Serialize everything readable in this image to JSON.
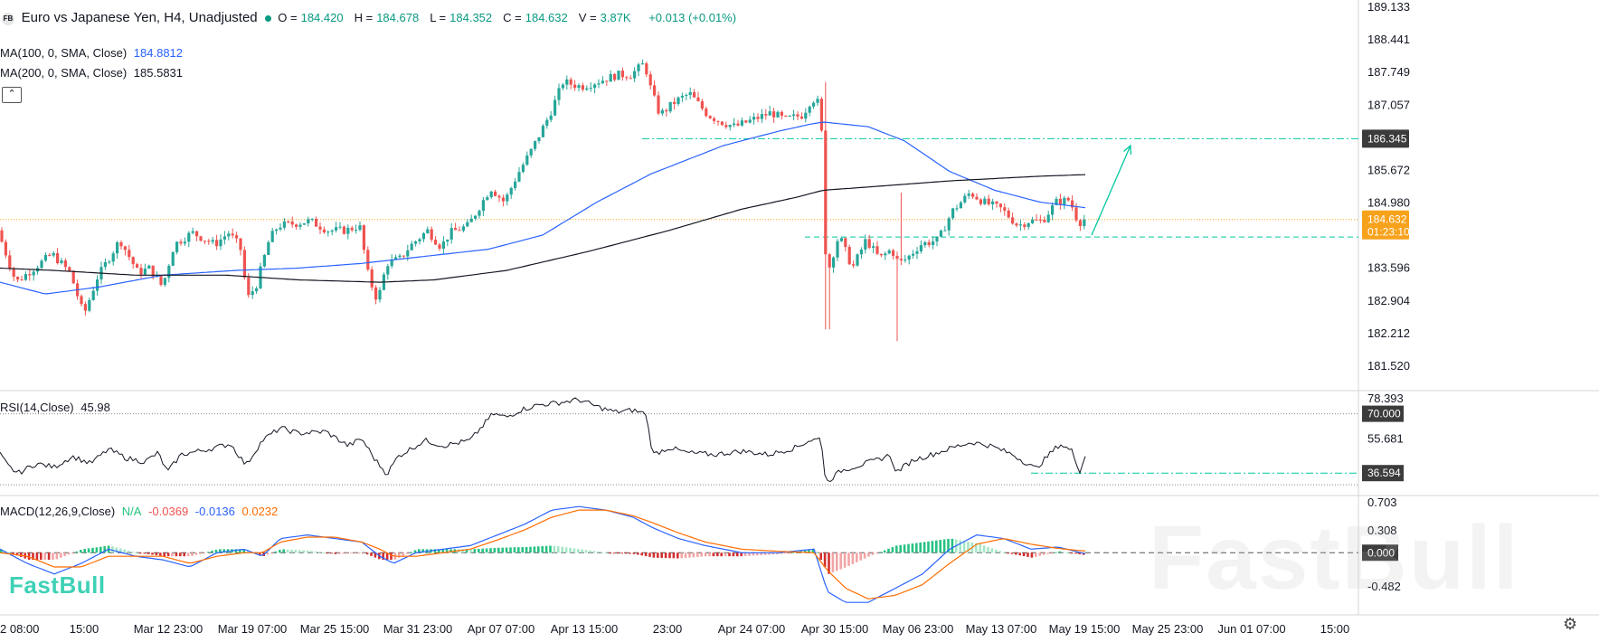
{
  "header": {
    "symbol_badge": "FB",
    "symbol": "Euro vs Japanese Yen, H4, Unadjusted",
    "ohlc": [
      {
        "label": "O",
        "value": "184.420"
      },
      {
        "label": "H",
        "value": "184.678"
      },
      {
        "label": "L",
        "value": "184.352"
      },
      {
        "label": "C",
        "value": "184.632"
      },
      {
        "label": "V",
        "value": "3.87K"
      }
    ],
    "change": "+0.013 (+0.01%)"
  },
  "indicators": {
    "ma100": {
      "label": "MA(100, 0, SMA, Close)",
      "value": "184.8812",
      "color": "#2962ff"
    },
    "ma200": {
      "label": "MA(200, 0, SMA, Close)",
      "value": "185.5831",
      "color": "#131722"
    },
    "rsi": {
      "label": "RSI(14,Close)",
      "value": "45.98"
    },
    "macd": {
      "label": "MACD(12,26,9,Close)",
      "na": "N/A",
      "hist": "-0.0369",
      "macd": "-0.0136",
      "signal": "0.0232"
    }
  },
  "brand": "FastBull",
  "watermark": "FastBull",
  "colors": {
    "up": "#26a69a",
    "down": "#ef5350",
    "ma100": "#2962ff",
    "ma200": "#131722",
    "macd_line": "#2962ff",
    "signal_line": "#ff6d00",
    "annotation": "#00c8a0",
    "price_tag": "#f7a21b",
    "level_tag": "#3c3c3c"
  },
  "chart_data": [
    {
      "type": "candlestick",
      "pane": "price",
      "x_ticks": [
        "2 08:00",
        "15:00",
        "Mar 12 23:00",
        "Mar 19 07:00",
        "Mar 25 15:00",
        "Mar 31 23:00",
        "Apr 07 07:00",
        "Apr 13 15:00",
        "23:00",
        "Apr 24 07:00",
        "Apr 30 15:00",
        "May 06 23:00",
        "May 13 07:00",
        "May 19 15:00",
        "May 25 23:00",
        "Jun 01 07:00",
        "15:00"
      ],
      "y_ticks": [
        189.133,
        188.441,
        187.749,
        187.057,
        186.345,
        185.672,
        184.98,
        184.632,
        183.596,
        182.904,
        182.212,
        181.52
      ],
      "ylim": [
        181.0,
        189.25
      ],
      "price_profile": [
        [
          0,
          184.4
        ],
        [
          20,
          183.3
        ],
        [
          40,
          183.6
        ],
        [
          60,
          183.9
        ],
        [
          80,
          183.5
        ],
        [
          95,
          182.6
        ],
        [
          110,
          183.4
        ],
        [
          135,
          184.2
        ],
        [
          155,
          183.5
        ],
        [
          168,
          183.6
        ],
        [
          182,
          183.2
        ],
        [
          195,
          184.1
        ],
        [
          215,
          184.35
        ],
        [
          240,
          184.1
        ],
        [
          255,
          184.35
        ],
        [
          268,
          184.05
        ],
        [
          276,
          182.95
        ],
        [
          286,
          183.25
        ],
        [
          300,
          184.2
        ],
        [
          310,
          184.5
        ],
        [
          330,
          184.55
        ],
        [
          345,
          184.6
        ],
        [
          365,
          184.4
        ],
        [
          385,
          184.4
        ],
        [
          400,
          184.5
        ],
        [
          410,
          183.4
        ],
        [
          420,
          182.9
        ],
        [
          430,
          183.7
        ],
        [
          445,
          183.8
        ],
        [
          455,
          184.05
        ],
        [
          475,
          184.4
        ],
        [
          490,
          184.05
        ],
        [
          500,
          184.35
        ],
        [
          520,
          184.5
        ],
        [
          545,
          185.3
        ],
        [
          560,
          185.0
        ],
        [
          575,
          185.6
        ],
        [
          590,
          186.1
        ],
        [
          610,
          186.85
        ],
        [
          625,
          187.55
        ],
        [
          645,
          187.45
        ],
        [
          670,
          187.6
        ],
        [
          685,
          187.7
        ],
        [
          700,
          187.7
        ],
        [
          715,
          187.95
        ],
        [
          722,
          187.4
        ],
        [
          732,
          186.85
        ],
        [
          750,
          187.15
        ],
        [
          765,
          187.3
        ],
        [
          785,
          186.85
        ],
        [
          800,
          186.7
        ],
        [
          815,
          186.6
        ],
        [
          835,
          186.75
        ],
        [
          855,
          186.9
        ],
        [
          870,
          186.75
        ],
        [
          890,
          186.85
        ],
        [
          900,
          187.2
        ],
        [
          908,
          187.1
        ],
        [
          912,
          186.2
        ],
        [
          916,
          183.4
        ],
        [
          930,
          184.3
        ],
        [
          945,
          183.6
        ],
        [
          960,
          184.2
        ],
        [
          975,
          183.8
        ],
        [
          988,
          184.0
        ],
        [
          996,
          183.7
        ],
        [
          1005,
          183.8
        ],
        [
          1020,
          184.1
        ],
        [
          1040,
          184.2
        ],
        [
          1055,
          184.8
        ],
        [
          1075,
          185.2
        ],
        [
          1090,
          185.0
        ],
        [
          1110,
          184.85
        ],
        [
          1128,
          184.5
        ],
        [
          1140,
          184.6
        ],
        [
          1155,
          184.6
        ],
        [
          1170,
          185.0
        ],
        [
          1185,
          185.05
        ],
        [
          1195,
          184.55
        ],
        [
          1200,
          184.632
        ]
      ],
      "wick_extremes": [
        {
          "x": 910,
          "high": 187.55
        },
        {
          "x": 913,
          "low": 182.3
        },
        {
          "x": 990,
          "low": 182.05
        },
        {
          "x": 993,
          "high": 185.2
        }
      ],
      "ma100_profile": [
        [
          0,
          183.3
        ],
        [
          50,
          183.05
        ],
        [
          110,
          183.2
        ],
        [
          180,
          183.45
        ],
        [
          260,
          183.55
        ],
        [
          330,
          183.6
        ],
        [
          400,
          183.7
        ],
        [
          470,
          183.85
        ],
        [
          540,
          184.0
        ],
        [
          600,
          184.3
        ],
        [
          660,
          185.0
        ],
        [
          720,
          185.6
        ],
        [
          800,
          186.2
        ],
        [
          860,
          186.5
        ],
        [
          895,
          186.65
        ],
        [
          910,
          186.7
        ],
        [
          960,
          186.6
        ],
        [
          1000,
          186.3
        ],
        [
          1050,
          185.65
        ],
        [
          1100,
          185.25
        ],
        [
          1150,
          185.0
        ],
        [
          1200,
          184.8812
        ]
      ],
      "ma200_profile": [
        [
          0,
          183.6
        ],
        [
          60,
          183.55
        ],
        [
          150,
          183.45
        ],
        [
          250,
          183.45
        ],
        [
          330,
          183.35
        ],
        [
          420,
          183.3
        ],
        [
          480,
          183.35
        ],
        [
          560,
          183.55
        ],
        [
          650,
          183.95
        ],
        [
          740,
          184.4
        ],
        [
          820,
          184.85
        ],
        [
          880,
          185.1
        ],
        [
          910,
          185.25
        ],
        [
          980,
          185.35
        ],
        [
          1050,
          185.45
        ],
        [
          1100,
          185.5
        ],
        [
          1150,
          185.55
        ],
        [
          1200,
          185.5831
        ]
      ],
      "levels": [
        {
          "price": 186.345,
          "from_x": 710,
          "style": "dash-dot",
          "color": "#00c8a0",
          "tag": "186.345"
        },
        {
          "price": 184.632,
          "from_x": 0,
          "style": "dotted",
          "color": "#f7a21b",
          "tag": "184.632",
          "subtag": "01:23:10"
        },
        {
          "price": 184.26,
          "from_x": 890,
          "style": "dashed",
          "color": "#00c8a0"
        }
      ],
      "arrow": {
        "from": [
          1207,
          184.3
        ],
        "to": [
          1250,
          186.2
        ]
      }
    },
    {
      "type": "line",
      "pane": "rsi",
      "name": "RSI(14,Close)",
      "y_ticks": [
        78.393,
        70.0,
        55.681,
        36.594
      ],
      "ylim": [
        25,
        82
      ],
      "profile": [
        [
          0,
          47
        ],
        [
          10,
          40
        ],
        [
          20,
          36.5
        ],
        [
          40,
          42
        ],
        [
          60,
          40
        ],
        [
          80,
          46
        ],
        [
          100,
          42
        ],
        [
          120,
          50
        ],
        [
          140,
          45
        ],
        [
          160,
          43
        ],
        [
          175,
          48
        ],
        [
          185,
          37
        ],
        [
          200,
          47
        ],
        [
          230,
          50
        ],
        [
          255,
          53
        ],
        [
          272,
          41
        ],
        [
          290,
          55
        ],
        [
          310,
          62
        ],
        [
          330,
          59
        ],
        [
          360,
          60
        ],
        [
          385,
          52
        ],
        [
          400,
          56
        ],
        [
          415,
          44
        ],
        [
          428,
          36
        ],
        [
          440,
          46
        ],
        [
          470,
          55
        ],
        [
          490,
          52
        ],
        [
          520,
          55
        ],
        [
          545,
          70
        ],
        [
          560,
          68
        ],
        [
          575,
          72
        ],
        [
          595,
          75
        ],
        [
          615,
          76
        ],
        [
          640,
          78
        ],
        [
          660,
          74
        ],
        [
          680,
          71
        ],
        [
          700,
          72
        ],
        [
          714,
          70
        ],
        [
          722,
          47
        ],
        [
          740,
          51
        ],
        [
          760,
          48
        ],
        [
          790,
          47
        ],
        [
          820,
          49
        ],
        [
          850,
          47
        ],
        [
          880,
          51
        ],
        [
          895,
          55
        ],
        [
          908,
          56
        ],
        [
          913,
          31
        ],
        [
          930,
          38
        ],
        [
          950,
          41
        ],
        [
          970,
          44
        ],
        [
          985,
          47
        ],
        [
          990,
          37
        ],
        [
          1010,
          44
        ],
        [
          1030,
          47
        ],
        [
          1060,
          52
        ],
        [
          1075,
          54
        ],
        [
          1095,
          52
        ],
        [
          1120,
          47
        ],
        [
          1145,
          39
        ],
        [
          1160,
          47
        ],
        [
          1172,
          53
        ],
        [
          1185,
          49
        ],
        [
          1194,
          38
        ],
        [
          1200,
          45.98
        ]
      ],
      "levels": [
        {
          "value": 70.0,
          "style": "dotted",
          "tag": "70.000"
        },
        {
          "value": 36.594,
          "from_x": 1140,
          "style": "dash-dot",
          "color": "#00c8a0",
          "tag": "36.594"
        },
        {
          "value": 30.0,
          "style": "dotted"
        }
      ]
    },
    {
      "type": "bar",
      "pane": "macd",
      "name": "MACD(12,26,9,Close)",
      "y_ticks": [
        0.703,
        0.308,
        0.0,
        -0.482
      ],
      "ylim": [
        -0.85,
        0.78
      ],
      "macd_profile": [
        [
          0,
          0.05
        ],
        [
          30,
          -0.15
        ],
        [
          60,
          -0.3
        ],
        [
          90,
          -0.15
        ],
        [
          120,
          0.05
        ],
        [
          150,
          -0.05
        ],
        [
          180,
          -0.1
        ],
        [
          210,
          -0.2
        ],
        [
          240,
          0.0
        ],
        [
          270,
          0.05
        ],
        [
          290,
          -0.05
        ],
        [
          310,
          0.2
        ],
        [
          340,
          0.25
        ],
        [
          370,
          0.2
        ],
        [
          400,
          0.15
        ],
        [
          420,
          -0.05
        ],
        [
          435,
          -0.15
        ],
        [
          460,
          0.0
        ],
        [
          490,
          0.05
        ],
        [
          520,
          0.1
        ],
        [
          550,
          0.25
        ],
        [
          580,
          0.4
        ],
        [
          610,
          0.6
        ],
        [
          640,
          0.65
        ],
        [
          670,
          0.6
        ],
        [
          700,
          0.5
        ],
        [
          722,
          0.35
        ],
        [
          750,
          0.2
        ],
        [
          780,
          0.1
        ],
        [
          820,
          0.0
        ],
        [
          860,
          0.0
        ],
        [
          900,
          0.05
        ],
        [
          915,
          -0.55
        ],
        [
          935,
          -0.7
        ],
        [
          960,
          -0.7
        ],
        [
          990,
          -0.5
        ],
        [
          1020,
          -0.3
        ],
        [
          1050,
          0.05
        ],
        [
          1080,
          0.25
        ],
        [
          1110,
          0.2
        ],
        [
          1140,
          0.05
        ],
        [
          1170,
          0.08
        ],
        [
          1200,
          -0.0136
        ]
      ],
      "signal_profile": [
        [
          0,
          0.0
        ],
        [
          30,
          -0.05
        ],
        [
          60,
          -0.2
        ],
        [
          90,
          -0.2
        ],
        [
          120,
          -0.05
        ],
        [
          150,
          -0.05
        ],
        [
          180,
          -0.05
        ],
        [
          210,
          -0.15
        ],
        [
          240,
          -0.05
        ],
        [
          270,
          0.0
        ],
        [
          290,
          0.0
        ],
        [
          310,
          0.15
        ],
        [
          340,
          0.22
        ],
        [
          370,
          0.22
        ],
        [
          400,
          0.15
        ],
        [
          420,
          0.05
        ],
        [
          435,
          -0.05
        ],
        [
          460,
          -0.05
        ],
        [
          490,
          0.0
        ],
        [
          520,
          0.05
        ],
        [
          550,
          0.18
        ],
        [
          580,
          0.32
        ],
        [
          610,
          0.5
        ],
        [
          640,
          0.6
        ],
        [
          670,
          0.6
        ],
        [
          700,
          0.52
        ],
        [
          722,
          0.42
        ],
        [
          750,
          0.28
        ],
        [
          780,
          0.15
        ],
        [
          820,
          0.05
        ],
        [
          860,
          0.02
        ],
        [
          900,
          0.0
        ],
        [
          915,
          -0.25
        ],
        [
          935,
          -0.5
        ],
        [
          960,
          -0.65
        ],
        [
          990,
          -0.6
        ],
        [
          1020,
          -0.45
        ],
        [
          1050,
          -0.15
        ],
        [
          1080,
          0.12
        ],
        [
          1110,
          0.2
        ],
        [
          1140,
          0.12
        ],
        [
          1170,
          0.06
        ],
        [
          1200,
          0.0232
        ]
      ],
      "levels": [
        {
          "value": 0.0,
          "style": "dashed",
          "tag": "0.000"
        }
      ]
    }
  ]
}
